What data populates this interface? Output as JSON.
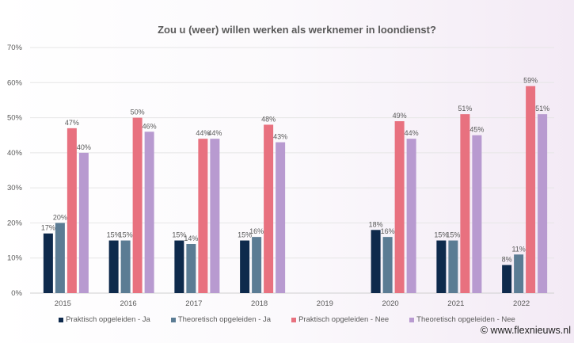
{
  "chart_data": {
    "type": "bar",
    "title": "Zou u (weer) willen werken als werknemer in loondienst?",
    "categories": [
      "2015",
      "2016",
      "2017",
      "2018",
      "2019",
      "2020",
      "2021",
      "2022"
    ],
    "series": [
      {
        "name": "Praktisch opgeleiden - Ja",
        "color": "#0e2a4c",
        "values": [
          17,
          15,
          15,
          15,
          null,
          18,
          15,
          8
        ]
      },
      {
        "name": "Theoretisch opgeleiden - Ja",
        "color": "#5b7c94",
        "values": [
          20,
          15,
          14,
          16,
          null,
          16,
          15,
          11
        ]
      },
      {
        "name": "Praktisch opgeleiden - Nee",
        "color": "#e8717f",
        "values": [
          47,
          50,
          44,
          48,
          null,
          49,
          51,
          59
        ]
      },
      {
        "name": "Theoretisch opgeleiden - Nee",
        "color": "#b89ad0",
        "values": [
          40,
          46,
          44,
          43,
          null,
          44,
          45,
          51
        ]
      }
    ],
    "ylim": [
      0,
      70
    ],
    "yticks": [
      "0%",
      "10%",
      "20%",
      "30%",
      "40%",
      "50%",
      "60%",
      "70%"
    ],
    "value_suffix": "%",
    "grid": true,
    "legend_position": "bottom"
  },
  "credit": "© www.flexnieuws.nl"
}
